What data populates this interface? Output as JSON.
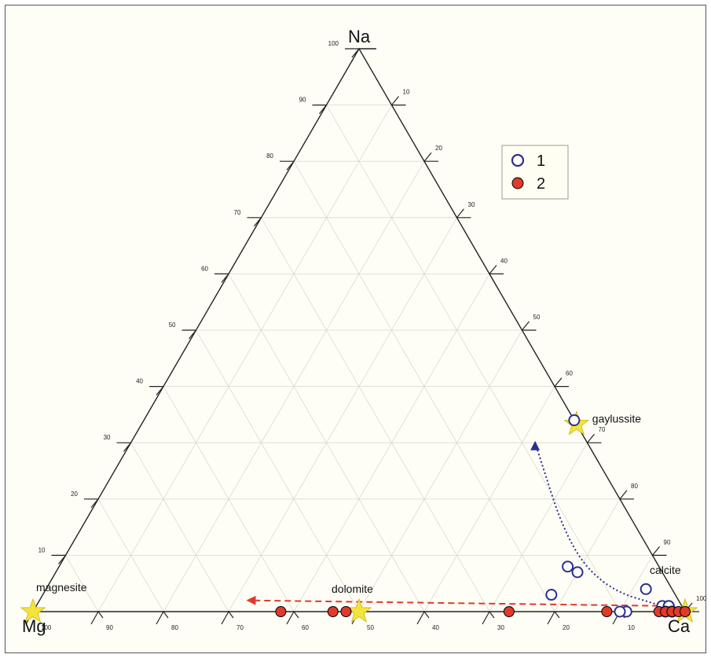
{
  "chart_data": {
    "type": "scatter",
    "subtype": "ternary",
    "title": "",
    "corners": {
      "top": "Na",
      "left": "Mg",
      "right": "Ca"
    },
    "axis_ticks": {
      "left_edge": [
        "10",
        "20",
        "30",
        "40",
        "50",
        "60",
        "70",
        "80",
        "90",
        "100"
      ],
      "right_edge": [
        "10",
        "20",
        "30",
        "40",
        "50",
        "60",
        "70",
        "80",
        "90",
        "100"
      ],
      "bottom_edge": [
        "10",
        "20",
        "30",
        "40",
        "50",
        "60",
        "70",
        "80",
        "90",
        "100"
      ]
    },
    "grid": true,
    "legend_placement": "top-right",
    "legend": [
      {
        "label": "1",
        "marker": "open-circle",
        "color": "#2b2f8f"
      },
      {
        "label": "2",
        "marker": "filled-circle",
        "color": "#e03a2a"
      }
    ],
    "minerals": [
      {
        "name": "gaylussite",
        "na": 33.3,
        "mg": 0,
        "ca": 66.7
      },
      {
        "name": "magnesite",
        "na": 0,
        "mg": 100,
        "ca": 0
      },
      {
        "name": "dolomite",
        "na": 0,
        "mg": 50,
        "ca": 50
      },
      {
        "name": "calcite",
        "na": 0,
        "mg": 0,
        "ca": 100
      }
    ],
    "series": [
      {
        "name": "1",
        "points": [
          {
            "na": 34,
            "mg": 0,
            "ca": 66
          },
          {
            "na": 8,
            "mg": 14,
            "ca": 78
          },
          {
            "na": 7,
            "mg": 13,
            "ca": 80
          },
          {
            "na": 3,
            "mg": 19,
            "ca": 78
          },
          {
            "na": 4,
            "mg": 4,
            "ca": 92
          },
          {
            "na": 1,
            "mg": 3,
            "ca": 96
          },
          {
            "na": 1,
            "mg": 2,
            "ca": 97
          },
          {
            "na": 1,
            "mg": 2,
            "ca": 97
          },
          {
            "na": 0,
            "mg": 2,
            "ca": 98
          },
          {
            "na": 0,
            "mg": 3,
            "ca": 97
          },
          {
            "na": 0,
            "mg": 2,
            "ca": 98
          },
          {
            "na": 0,
            "mg": 9,
            "ca": 91
          },
          {
            "na": 0,
            "mg": 10,
            "ca": 90
          }
        ]
      },
      {
        "name": "2",
        "points": [
          {
            "na": 0,
            "mg": 62,
            "ca": 38
          },
          {
            "na": 0,
            "mg": 54,
            "ca": 46
          },
          {
            "na": 0,
            "mg": 52,
            "ca": 48
          },
          {
            "na": 0,
            "mg": 27,
            "ca": 73
          },
          {
            "na": 0,
            "mg": 12,
            "ca": 88
          },
          {
            "na": 0,
            "mg": 4,
            "ca": 96
          },
          {
            "na": 0,
            "mg": 3,
            "ca": 97
          },
          {
            "na": 0,
            "mg": 2,
            "ca": 98
          },
          {
            "na": 0,
            "mg": 1,
            "ca": 99
          },
          {
            "na": 0,
            "mg": 0,
            "ca": 100
          }
        ]
      }
    ],
    "trends": [
      {
        "color": "#2b2f8f",
        "style": "dotted",
        "points": [
          {
            "na": 1,
            "mg": 3,
            "ca": 96
          },
          {
            "na": 4,
            "mg": 10,
            "ca": 86
          },
          {
            "na": 12,
            "mg": 12,
            "ca": 76
          },
          {
            "na": 30,
            "mg": 8,
            "ca": 62
          }
        ]
      },
      {
        "color": "#e03a2a",
        "style": "dashed",
        "points": [
          {
            "na": 1,
            "mg": 2,
            "ca": 97
          },
          {
            "na": 2,
            "mg": 66,
            "ca": 32
          }
        ]
      }
    ]
  }
}
